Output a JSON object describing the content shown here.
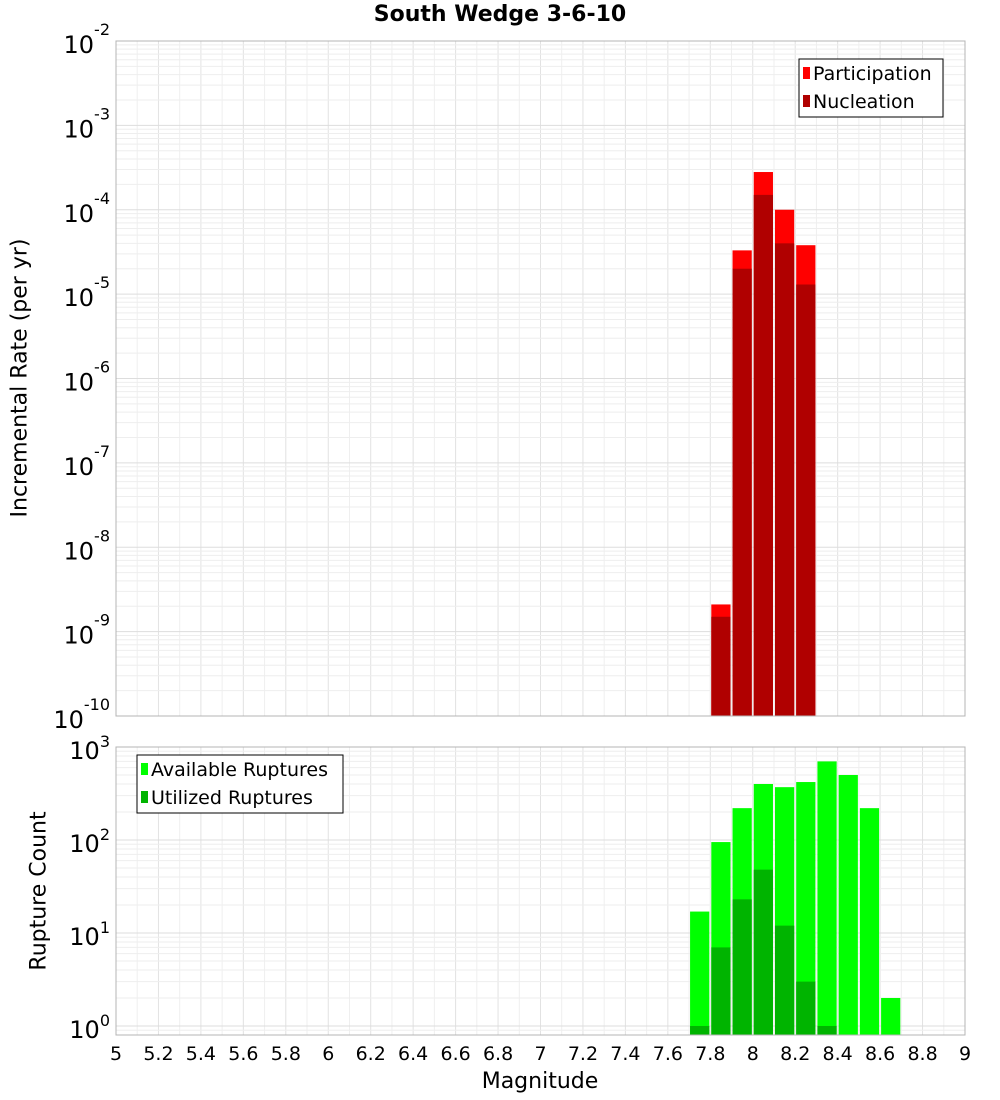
{
  "figure": {
    "title": "South Wedge 3-6-10",
    "xlabel": "Magnitude",
    "x_ticks": [
      "5",
      "5.2",
      "5.4",
      "5.6",
      "5.8",
      "6",
      "6.2",
      "6.4",
      "6.6",
      "6.8",
      "7",
      "7.2",
      "7.4",
      "7.6",
      "7.8",
      "8",
      "8.2",
      "8.4",
      "8.6",
      "8.8",
      "9"
    ]
  },
  "chart_data": [
    {
      "type": "bar",
      "ylabel": "Incremental Rate (per yr)",
      "y_scale": "log",
      "xlim": [
        5,
        9
      ],
      "ylim": [
        1e-10,
        0.01
      ],
      "grid": true,
      "legend_position": "top-right",
      "bin_width": 0.1,
      "y_ticks": [
        {
          "base": "10",
          "exp": "-10",
          "value": 1e-10
        },
        {
          "base": "10",
          "exp": "-9",
          "value": 1e-09
        },
        {
          "base": "10",
          "exp": "-8",
          "value": 1e-08
        },
        {
          "base": "10",
          "exp": "-7",
          "value": 1e-07
        },
        {
          "base": "10",
          "exp": "-6",
          "value": 1e-06
        },
        {
          "base": "10",
          "exp": "-5",
          "value": 1e-05
        },
        {
          "base": "10",
          "exp": "-4",
          "value": 0.0001
        },
        {
          "base": "10",
          "exp": "-3",
          "value": 0.001
        },
        {
          "base": "10",
          "exp": "-2",
          "value": 0.01
        }
      ],
      "series": [
        {
          "name": "Participation",
          "color": "#ff0000",
          "x": [
            7.85,
            7.95,
            8.05,
            8.15,
            8.25
          ],
          "values": [
            2.1e-09,
            3.3e-05,
            0.00028,
            0.0001,
            3.8e-05
          ]
        },
        {
          "name": "Nucleation",
          "color": "#b00000",
          "x": [
            7.85,
            7.95,
            8.05,
            8.15,
            8.25
          ],
          "values": [
            1.5e-09,
            2e-05,
            0.00015,
            4e-05,
            1.3e-05
          ]
        }
      ]
    },
    {
      "type": "bar",
      "ylabel": "Rupture Count",
      "y_scale": "log",
      "xlim": [
        5,
        9
      ],
      "ylim": [
        0.8,
        1000
      ],
      "grid": true,
      "legend_position": "top-left",
      "bin_width": 0.1,
      "y_ticks": [
        {
          "base": "10",
          "exp": "0",
          "value": 1
        },
        {
          "base": "10",
          "exp": "1",
          "value": 10
        },
        {
          "base": "10",
          "exp": "2",
          "value": 100
        },
        {
          "base": "10",
          "exp": "3",
          "value": 1000
        }
      ],
      "series": [
        {
          "name": "Available Ruptures",
          "color": "#00ff00",
          "x": [
            7.75,
            7.85,
            7.95,
            8.05,
            8.15,
            8.25,
            8.35,
            8.45,
            8.55,
            8.65
          ],
          "values": [
            17,
            95,
            220,
            400,
            370,
            420,
            700,
            500,
            220,
            2
          ]
        },
        {
          "name": "Utilized Ruptures",
          "color": "#00b400",
          "x": [
            7.75,
            7.85,
            7.95,
            8.05,
            8.15,
            8.25,
            8.35
          ],
          "values": [
            1,
            7,
            23,
            48,
            12,
            3,
            1
          ]
        }
      ]
    }
  ]
}
